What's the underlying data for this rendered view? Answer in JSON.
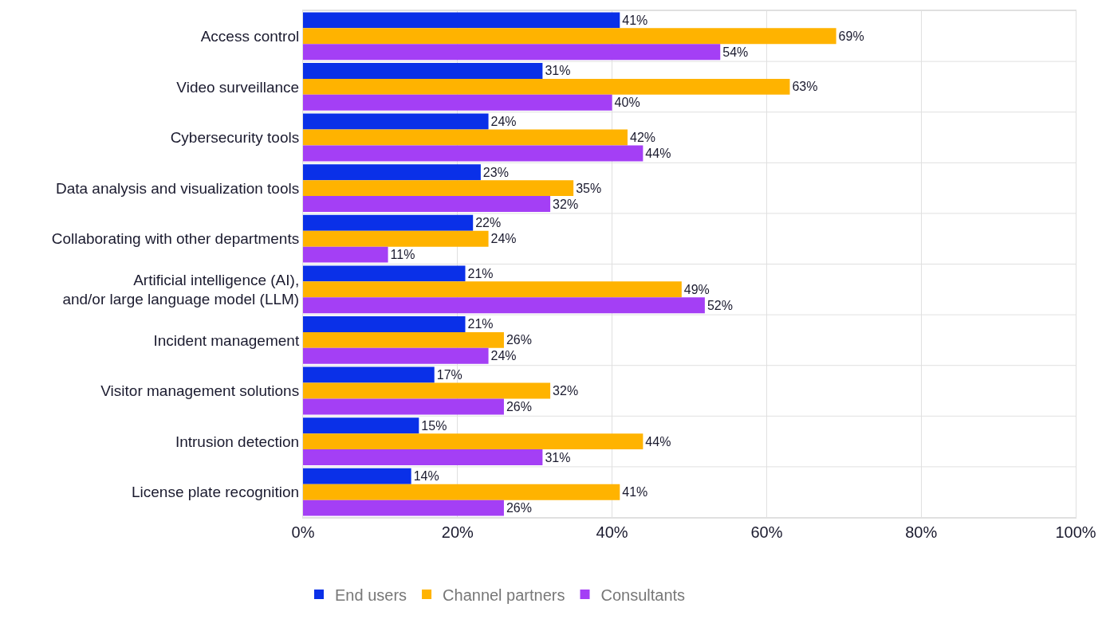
{
  "chart_data": {
    "type": "bar",
    "orientation": "horizontal",
    "categories": [
      "Access control",
      "Video surveillance",
      "Cybersecurity tools",
      "Data analysis and visualization tools",
      "Collaborating with other departments",
      "Artificial intelligence (AI),\nand/or large language model (LLM)",
      "Incident management",
      "Visitor management solutions",
      "Intrusion detection",
      "License plate recognition"
    ],
    "series": [
      {
        "name": "End users",
        "color": "#0a30e8",
        "values": [
          41,
          31,
          24,
          23,
          22,
          21,
          21,
          17,
          15,
          14
        ],
        "value_labels": [
          "41%",
          "31%",
          "24%",
          "23%",
          "22%",
          "21%",
          "21%",
          "17%",
          "15%",
          "14%"
        ]
      },
      {
        "name": "Channel partners",
        "color": "#ffb300",
        "values": [
          69,
          63,
          42,
          35,
          24,
          49,
          26,
          32,
          44,
          41
        ],
        "value_labels": [
          "69%",
          "63%",
          "42%",
          "35%",
          "24%",
          "49%",
          "26%",
          "32%",
          "44%",
          "41%"
        ]
      },
      {
        "name": "Consultants",
        "color": "#a43ff5",
        "values": [
          54,
          40,
          44,
          32,
          11,
          52,
          24,
          26,
          31,
          26
        ],
        "value_labels": [
          "54%",
          "40%",
          "44%",
          "32%",
          "11%",
          "52%",
          "24%",
          "26%",
          "31%",
          "26%"
        ]
      }
    ],
    "xlim": [
      0,
      100
    ],
    "xticks": [
      {
        "value": 0,
        "label": "0%"
      },
      {
        "value": 20,
        "label": "20%"
      },
      {
        "value": 40,
        "label": "40%"
      },
      {
        "value": 60,
        "label": "60%"
      },
      {
        "value": 80,
        "label": "80%"
      },
      {
        "value": 100,
        "label": "100%"
      }
    ],
    "grid": true,
    "legend": "bottom"
  }
}
